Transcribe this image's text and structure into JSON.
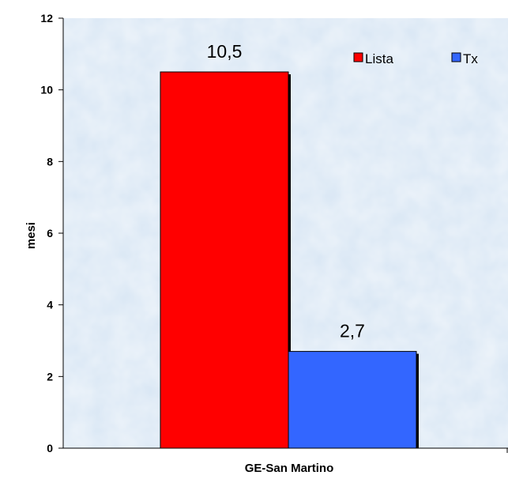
{
  "chart_data": {
    "type": "bar",
    "categories": [
      "GE-San Martino"
    ],
    "series": [
      {
        "name": "Lista",
        "values": [
          10.5
        ],
        "color": "#ff0000"
      },
      {
        "name": "Tx",
        "values": [
          2.7
        ],
        "color": "#3366ff"
      }
    ],
    "data_labels": [
      "10,5",
      "2,7"
    ],
    "xlabel": "GE-San Martino",
    "ylabel": "mesi",
    "ylim": [
      0,
      12
    ],
    "yticks": [
      0,
      2,
      4,
      6,
      8,
      10,
      12
    ],
    "grid": false,
    "legend_position": "top-right",
    "plot_background": "#d8e6f4"
  }
}
